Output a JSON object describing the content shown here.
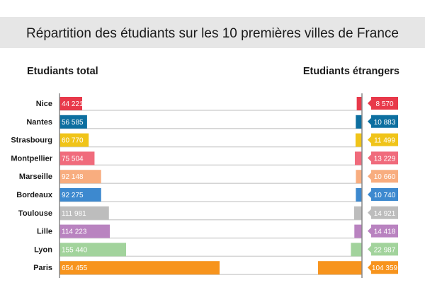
{
  "chart_data": {
    "type": "bar",
    "title": "Répartition des étudiants sur les 10 premières villes de France",
    "categories": [
      "Nice",
      "Nantes",
      "Strasbourg",
      "Montpellier",
      "Marseille",
      "Bordeaux",
      "Toulouse",
      "Lille",
      "Lyon",
      "Paris"
    ],
    "series": [
      {
        "name": "Etudiants total",
        "values": [
          44221,
          56585,
          60770,
          75504,
          92148,
          92275,
          111981,
          114223,
          155440,
          654455
        ],
        "labels": [
          "44 221",
          "56 585",
          "60 770",
          "75 504",
          "92 148",
          "92 275",
          "111 981",
          "114 223",
          "155 440",
          "654 455"
        ]
      },
      {
        "name": "Etudiants étrangers",
        "values": [
          8570,
          10883,
          11499,
          13229,
          10660,
          10740,
          14921,
          14418,
          22987,
          104359
        ],
        "labels": [
          "8 570",
          "10 883",
          "11 499",
          "13 229",
          "10 660",
          "10 740",
          "14 921",
          "14 418",
          "22 987",
          "104 359"
        ]
      }
    ],
    "colors": [
      "#e8394a",
      "#0d6fa0",
      "#f0c419",
      "#f06b7c",
      "#f8ad7f",
      "#3d89cf",
      "#bdbdbd",
      "#b983c0",
      "#a2d39c",
      "#f7941d"
    ],
    "orientation": "horizontal",
    "grid": false
  }
}
